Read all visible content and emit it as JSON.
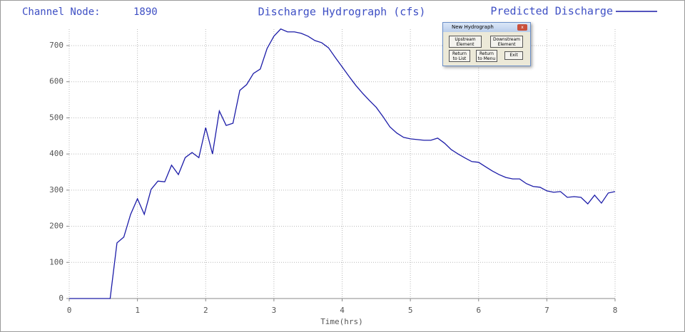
{
  "chart_data": {
    "type": "line",
    "title": "Discharge Hydrograph (cfs)",
    "annotations": [
      "Channel Node:",
      "1890"
    ],
    "xlabel": "Time(hrs)",
    "x": [
      0,
      0.6,
      0.7,
      0.8,
      0.9,
      1.0,
      1.1,
      1.2,
      1.3,
      1.4,
      1.5,
      1.6,
      1.7,
      1.8,
      1.9,
      2.0,
      2.1,
      2.2,
      2.3,
      2.4,
      2.5,
      2.6,
      2.7,
      2.8,
      2.9,
      3.0,
      3.1,
      3.2,
      3.3,
      3.4,
      3.5,
      3.6,
      3.7,
      3.8,
      3.9,
      4.0,
      4.1,
      4.2,
      4.3,
      4.4,
      4.5,
      4.6,
      4.7,
      4.8,
      4.9,
      5.0,
      5.1,
      5.2,
      5.3,
      5.4,
      5.5,
      5.6,
      5.7,
      5.8,
      5.9,
      6.0,
      6.1,
      6.2,
      6.3,
      6.4,
      6.5,
      6.6,
      6.7,
      6.8,
      6.9,
      7.0,
      7.1,
      7.2,
      7.3,
      7.4,
      7.5,
      7.6,
      7.7,
      7.8,
      7.9,
      8.0
    ],
    "series": [
      {
        "name": "Predicted Discharge",
        "color": "#1c1ca8",
        "values": [
          0,
          0,
          154,
          170,
          233,
          276,
          233,
          302,
          325,
          323,
          369,
          343,
          390,
          404,
          390,
          473,
          400,
          519,
          479,
          485,
          576,
          592,
          623,
          635,
          692,
          726,
          746,
          738,
          738,
          734,
          726,
          714,
          708,
          694,
          667,
          641,
          615,
          590,
          568,
          548,
          529,
          503,
          475,
          458,
          446,
          442,
          440,
          438,
          438,
          444,
          430,
          412,
          400,
          389,
          379,
          377,
          365,
          353,
          343,
          335,
          331,
          331,
          318,
          310,
          308,
          298,
          294,
          296,
          280,
          282,
          280,
          262,
          286,
          264,
          292,
          296
        ]
      }
    ],
    "xlim": [
      0,
      8
    ],
    "xticks": [
      0,
      1,
      2,
      3,
      4,
      5,
      6,
      7,
      8
    ],
    "ylim": [
      0,
      700
    ],
    "yticks": [
      0,
      100,
      200,
      300,
      400,
      500,
      600,
      700
    ],
    "grid": true,
    "legend": "top-right"
  },
  "dialog": {
    "title": "New Hydrograph",
    "buttons": [
      [
        "Upstream",
        "Element"
      ],
      [
        "Downstream",
        "Element"
      ],
      [
        "Return",
        "to List"
      ],
      [
        "Return",
        "to Menu"
      ],
      [
        "Exit"
      ]
    ]
  }
}
